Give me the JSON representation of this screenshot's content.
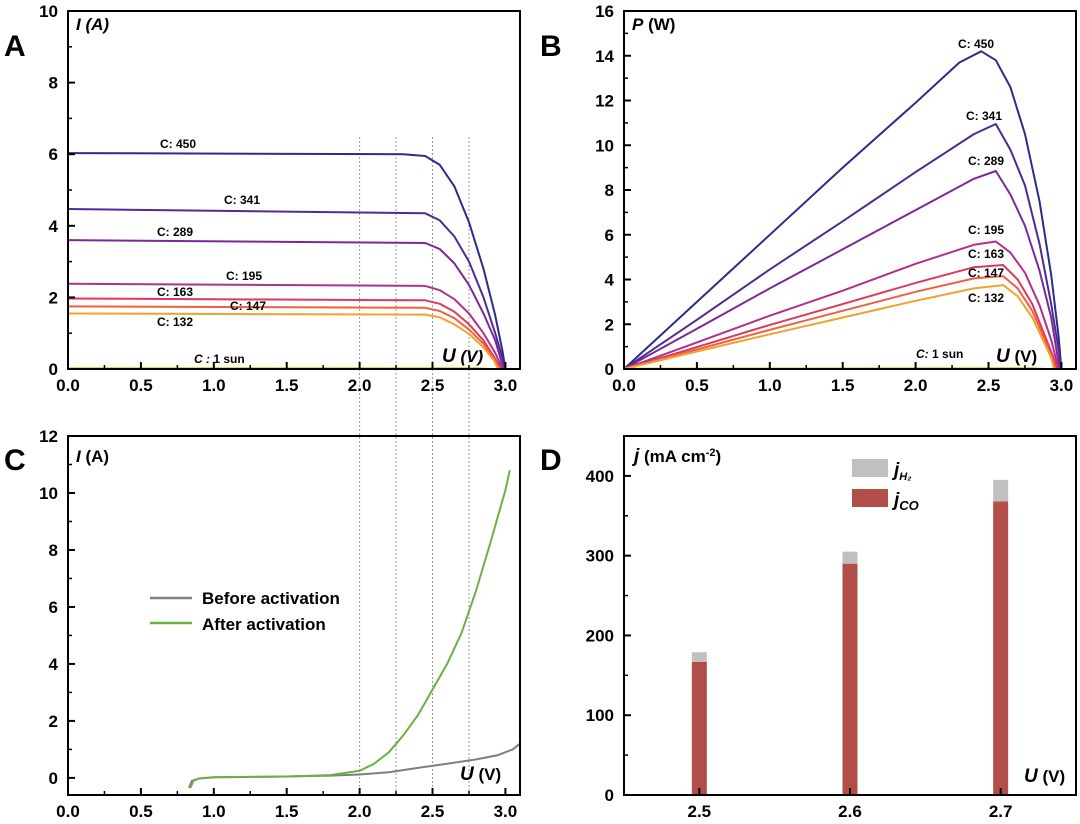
{
  "chart_data": [
    {
      "panel": "A",
      "type": "line",
      "ylabel": "I (A)",
      "xlabel": "U (V)",
      "xlim": [
        0,
        3.1
      ],
      "ylim": [
        0,
        10
      ],
      "xticks": [
        "0.0",
        "0.5",
        "1.0",
        "1.5",
        "2.0",
        "2.5",
        "3.0"
      ],
      "yticks": [
        "0",
        "2",
        "4",
        "6",
        "8",
        "10"
      ],
      "series": [
        {
          "name": "C: 450",
          "color": "#2c2c8c",
          "points": [
            [
              0,
              6.03
            ],
            [
              2.3,
              6.0
            ],
            [
              2.45,
              5.95
            ],
            [
              2.55,
              5.7
            ],
            [
              2.65,
              5.1
            ],
            [
              2.75,
              4.1
            ],
            [
              2.85,
              2.8
            ],
            [
              2.93,
              1.5
            ],
            [
              2.98,
              0.5
            ],
            [
              3.0,
              0
            ]
          ]
        },
        {
          "name": "C: 341",
          "color": "#4f2a96",
          "points": [
            [
              0,
              4.47
            ],
            [
              2.45,
              4.35
            ],
            [
              2.55,
              4.15
            ],
            [
              2.65,
              3.7
            ],
            [
              2.75,
              3.0
            ],
            [
              2.85,
              2.0
            ],
            [
              2.93,
              1.0
            ],
            [
              2.98,
              0.3
            ],
            [
              3.0,
              0
            ]
          ]
        },
        {
          "name": "C: 289",
          "color": "#7a2a98",
          "points": [
            [
              0,
              3.6
            ],
            [
              2.45,
              3.52
            ],
            [
              2.55,
              3.35
            ],
            [
              2.65,
              2.95
            ],
            [
              2.75,
              2.35
            ],
            [
              2.85,
              1.55
            ],
            [
              2.93,
              0.8
            ],
            [
              2.97,
              0.25
            ],
            [
              2.99,
              0
            ]
          ]
        },
        {
          "name": "C: 195",
          "color": "#b03090",
          "points": [
            [
              0,
              2.38
            ],
            [
              2.45,
              2.32
            ],
            [
              2.55,
              2.2
            ],
            [
              2.65,
              1.95
            ],
            [
              2.75,
              1.55
            ],
            [
              2.85,
              1.0
            ],
            [
              2.93,
              0.45
            ],
            [
              2.98,
              0
            ]
          ]
        },
        {
          "name": "C: 163",
          "color": "#dd3a5a",
          "points": [
            [
              0,
              1.97
            ],
            [
              2.45,
              1.92
            ],
            [
              2.55,
              1.82
            ],
            [
              2.65,
              1.6
            ],
            [
              2.75,
              1.25
            ],
            [
              2.85,
              0.8
            ],
            [
              2.92,
              0.35
            ],
            [
              2.97,
              0
            ]
          ]
        },
        {
          "name": "C: 147",
          "color": "#ee6040",
          "points": [
            [
              0,
              1.75
            ],
            [
              2.45,
              1.71
            ],
            [
              2.55,
              1.62
            ],
            [
              2.65,
              1.42
            ],
            [
              2.75,
              1.1
            ],
            [
              2.85,
              0.7
            ],
            [
              2.92,
              0.3
            ],
            [
              2.96,
              0
            ]
          ]
        },
        {
          "name": "C: 132",
          "color": "#f3a12c",
          "points": [
            [
              0,
              1.55
            ],
            [
              2.45,
              1.52
            ],
            [
              2.55,
              1.44
            ],
            [
              2.65,
              1.25
            ],
            [
              2.75,
              0.98
            ],
            [
              2.85,
              0.6
            ],
            [
              2.92,
              0.25
            ],
            [
              2.95,
              0
            ]
          ]
        },
        {
          "name": "C : 1 sun",
          "color": "#d9c21a",
          "points": [
            [
              0,
              0.02
            ],
            [
              2.8,
              0.02
            ],
            [
              2.9,
              0.0
            ]
          ]
        }
      ]
    },
    {
      "panel": "B",
      "type": "line",
      "ylabel": "P (W)",
      "xlabel": "U (V)",
      "xlim": [
        0,
        3.1
      ],
      "ylim": [
        0,
        16
      ],
      "xticks": [
        "0.0",
        "0.5",
        "1.0",
        "1.5",
        "2.0",
        "2.5",
        "3.0"
      ],
      "yticks": [
        "0",
        "2",
        "4",
        "6",
        "8",
        "10",
        "12",
        "14",
        "16"
      ],
      "series": [
        {
          "name": "C: 450",
          "color": "#2c2c8c",
          "points": [
            [
              0,
              0
            ],
            [
              0.5,
              3.0
            ],
            [
              1.0,
              6.0
            ],
            [
              1.5,
              9.0
            ],
            [
              2.0,
              11.9
            ],
            [
              2.3,
              13.7
            ],
            [
              2.45,
              14.2
            ],
            [
              2.55,
              13.8
            ],
            [
              2.65,
              12.6
            ],
            [
              2.75,
              10.5
            ],
            [
              2.85,
              7.5
            ],
            [
              2.93,
              4.2
            ],
            [
              2.98,
              1.5
            ],
            [
              3.0,
              0
            ]
          ]
        },
        {
          "name": "C: 341",
          "color": "#4f2a96",
          "points": [
            [
              0,
              0
            ],
            [
              0.5,
              2.2
            ],
            [
              1.0,
              4.45
            ],
            [
              1.5,
              6.6
            ],
            [
              2.0,
              8.8
            ],
            [
              2.4,
              10.5
            ],
            [
              2.55,
              10.95
            ],
            [
              2.65,
              9.8
            ],
            [
              2.75,
              8.2
            ],
            [
              2.85,
              5.6
            ],
            [
              2.93,
              2.9
            ],
            [
              2.98,
              0.9
            ],
            [
              3.0,
              0
            ]
          ]
        },
        {
          "name": "C: 289",
          "color": "#7a2a98",
          "points": [
            [
              0,
              0
            ],
            [
              0.5,
              1.8
            ],
            [
              1.0,
              3.6
            ],
            [
              1.5,
              5.35
            ],
            [
              2.0,
              7.1
            ],
            [
              2.4,
              8.5
            ],
            [
              2.55,
              8.85
            ],
            [
              2.65,
              7.8
            ],
            [
              2.75,
              6.4
            ],
            [
              2.85,
              4.4
            ],
            [
              2.93,
              2.3
            ],
            [
              2.97,
              0.7
            ],
            [
              2.99,
              0
            ]
          ]
        },
        {
          "name": "C: 195",
          "color": "#b03090",
          "points": [
            [
              0,
              0
            ],
            [
              0.5,
              1.19
            ],
            [
              1.0,
              2.38
            ],
            [
              1.5,
              3.5
            ],
            [
              2.0,
              4.7
            ],
            [
              2.4,
              5.55
            ],
            [
              2.55,
              5.7
            ],
            [
              2.65,
              5.2
            ],
            [
              2.75,
              4.3
            ],
            [
              2.85,
              2.85
            ],
            [
              2.93,
              1.3
            ],
            [
              2.98,
              0
            ]
          ]
        },
        {
          "name": "C: 163",
          "color": "#dd3a5a",
          "points": [
            [
              0,
              0
            ],
            [
              0.5,
              0.98
            ],
            [
              1.0,
              1.97
            ],
            [
              1.5,
              2.9
            ],
            [
              2.0,
              3.85
            ],
            [
              2.4,
              4.55
            ],
            [
              2.6,
              4.65
            ],
            [
              2.7,
              4.0
            ],
            [
              2.8,
              2.9
            ],
            [
              2.88,
              1.6
            ],
            [
              2.94,
              0.6
            ],
            [
              2.97,
              0
            ]
          ]
        },
        {
          "name": "C: 147",
          "color": "#ee6040",
          "points": [
            [
              0,
              0
            ],
            [
              0.5,
              0.87
            ],
            [
              1.0,
              1.75
            ],
            [
              1.5,
              2.6
            ],
            [
              2.0,
              3.45
            ],
            [
              2.4,
              4.05
            ],
            [
              2.6,
              4.15
            ],
            [
              2.7,
              3.6
            ],
            [
              2.8,
              2.6
            ],
            [
              2.88,
              1.4
            ],
            [
              2.93,
              0.6
            ],
            [
              2.96,
              0
            ]
          ]
        },
        {
          "name": "C: 132",
          "color": "#f3a12c",
          "points": [
            [
              0,
              0
            ],
            [
              0.5,
              0.78
            ],
            [
              1.0,
              1.55
            ],
            [
              1.5,
              2.3
            ],
            [
              2.0,
              3.05
            ],
            [
              2.4,
              3.6
            ],
            [
              2.6,
              3.75
            ],
            [
              2.7,
              3.25
            ],
            [
              2.8,
              2.3
            ],
            [
              2.88,
              1.2
            ],
            [
              2.93,
              0.5
            ],
            [
              2.95,
              0
            ]
          ]
        },
        {
          "name": "C: 1 sun",
          "color": "#d9c21a",
          "points": [
            [
              0,
              0.02
            ],
            [
              2.8,
              0.03
            ],
            [
              2.9,
              0
            ]
          ]
        }
      ]
    },
    {
      "panel": "C",
      "type": "line",
      "ylabel": "I (A)",
      "xlabel": "U (V)",
      "xlim": [
        0,
        3.1
      ],
      "ylim": [
        -0.6,
        12
      ],
      "xticks": [
        "0.0",
        "0.5",
        "1.0",
        "1.5",
        "2.0",
        "2.5",
        "3.0"
      ],
      "yticks": [
        "0",
        "2",
        "4",
        "6",
        "8",
        "10",
        "12"
      ],
      "series": [
        {
          "name": "Before activation",
          "color": "#7f7f7f",
          "points": [
            [
              0.83,
              -0.35
            ],
            [
              0.85,
              -0.1
            ],
            [
              0.9,
              -0.02
            ],
            [
              1.0,
              0.02
            ],
            [
              1.5,
              0.05
            ],
            [
              1.8,
              0.08
            ],
            [
              2.0,
              0.12
            ],
            [
              2.2,
              0.2
            ],
            [
              2.4,
              0.35
            ],
            [
              2.6,
              0.5
            ],
            [
              2.8,
              0.65
            ],
            [
              2.95,
              0.8
            ],
            [
              3.05,
              1.0
            ],
            [
              3.1,
              1.2
            ]
          ]
        },
        {
          "name": "After activation",
          "color": "#6cb043",
          "points": [
            [
              0.84,
              -0.35
            ],
            [
              0.86,
              -0.1
            ],
            [
              0.9,
              -0.02
            ],
            [
              1.0,
              0.02
            ],
            [
              1.5,
              0.05
            ],
            [
              1.8,
              0.1
            ],
            [
              2.0,
              0.25
            ],
            [
              2.1,
              0.5
            ],
            [
              2.2,
              0.9
            ],
            [
              2.3,
              1.5
            ],
            [
              2.4,
              2.2
            ],
            [
              2.5,
              3.1
            ],
            [
              2.6,
              4.0
            ],
            [
              2.7,
              5.1
            ],
            [
              2.8,
              6.6
            ],
            [
              2.9,
              8.3
            ],
            [
              3.0,
              10.1
            ],
            [
              3.03,
              10.8
            ]
          ]
        }
      ],
      "legend": "center-left"
    },
    {
      "panel": "D",
      "type": "bar",
      "ylabel": "j (mA cm-2)",
      "xlabel": "U (V)",
      "categories": [
        "2.5",
        "2.6",
        "2.7"
      ],
      "ylim": [
        0,
        450
      ],
      "yticks": [
        "0",
        "100",
        "200",
        "300",
        "400"
      ],
      "stacked": true,
      "series": [
        {
          "name": "jCO",
          "color": "#b24e48",
          "values": [
            167,
            290,
            368
          ]
        },
        {
          "name": "jH2",
          "color": "#c0c0c0",
          "values": [
            12,
            15,
            27
          ]
        }
      ],
      "legend": "top-center"
    }
  ],
  "panels": {
    "A": {
      "letter": "A",
      "ylabel_italic": "I (A)",
      "xlabel_main": "U",
      "xlabel_unit": "(V)",
      "curve_labels": [
        "C: 450",
        "C: 341",
        "C: 289",
        "C: 195",
        "C: 163",
        "C: 147",
        "C: 132"
      ],
      "sun_prefix": "C :",
      "sun_text": "1 sun"
    },
    "B": {
      "letter": "B",
      "ylabel_sym": "P",
      "ylabel_unit": "(W)",
      "xlabel_main": "U",
      "xlabel_unit": "(V)",
      "curve_labels": [
        "C: 450",
        "C: 341",
        "C: 289",
        "C: 195",
        "C: 163",
        "C: 147",
        "C: 132"
      ],
      "sun_prefix": "C:",
      "sun_text": "1 sun"
    },
    "C": {
      "letter": "C",
      "ylabel_sym": "I",
      "ylabel_unit": "(A)",
      "xlabel_main": "U",
      "xlabel_unit": "(V)",
      "legend_before": "Before activation",
      "legend_after": "After activation"
    },
    "D": {
      "letter": "D",
      "ylabel_sym": "j",
      "ylabel_unit": "(mA cm",
      "ylabel_exp": "-2",
      "ylabel_close": ")",
      "xlabel_main": "U",
      "xlabel_unit": "(V)",
      "legend_h2_main": "j",
      "legend_h2_sub": "H₂",
      "legend_co_main": "j",
      "legend_co_sub": "CO"
    }
  }
}
